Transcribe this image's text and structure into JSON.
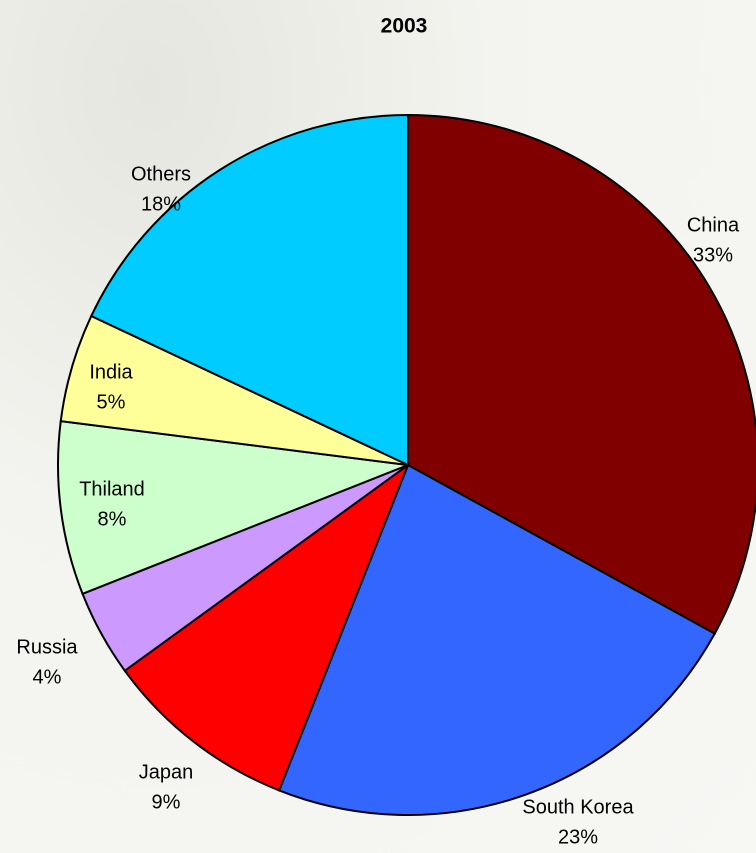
{
  "chart_data": {
    "type": "pie",
    "title": "2003",
    "categories": [
      "China",
      "South Korea",
      "Japan",
      "Russia",
      "Thiland",
      "India",
      "Others"
    ],
    "values": [
      33,
      23,
      9,
      4,
      8,
      5,
      18
    ],
    "value_labels": [
      "33%",
      "23%",
      "9%",
      "4%",
      "8%",
      "5%",
      "18%"
    ],
    "colors": [
      "#800000",
      "#3366ff",
      "#ff0000",
      "#cc99ff",
      "#ccffcc",
      "#ffff99",
      "#00ccff"
    ]
  }
}
